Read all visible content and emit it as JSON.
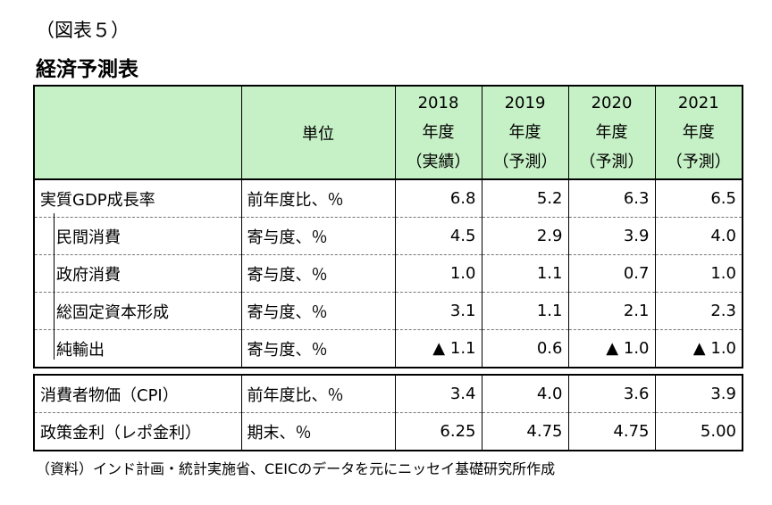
{
  "figure_label": "（図表５）",
  "title": "経済予測表",
  "header": {
    "unit": "単位",
    "years": [
      {
        "year": "2018",
        "kind": "年度",
        "status": "（実績）"
      },
      {
        "year": "2019",
        "kind": "年度",
        "status": "（予測）"
      },
      {
        "year": "2020",
        "kind": "年度",
        "status": "（予測）"
      },
      {
        "year": "2021",
        "kind": "年度",
        "status": "（予測）"
      }
    ]
  },
  "rows": [
    {
      "label": "実質GDP成長率",
      "unit": "前年度比、％",
      "values": [
        "6.8",
        "5.2",
        "6.3",
        "6.5"
      ]
    },
    {
      "label": "民間消費",
      "unit": "寄与度、％",
      "values": [
        "4.5",
        "2.9",
        "3.9",
        "4.0"
      ]
    },
    {
      "label": "政府消費",
      "unit": "寄与度、％",
      "values": [
        "1.0",
        "1.1",
        "0.7",
        "1.0"
      ]
    },
    {
      "label": "総固定資本形成",
      "unit": "寄与度、％",
      "values": [
        "3.1",
        "1.1",
        "2.1",
        "2.3"
      ]
    },
    {
      "label": "純輸出",
      "unit": "寄与度、％",
      "values": [
        "▲ 1.1",
        "0.6",
        "▲ 1.0",
        "▲ 1.0"
      ]
    }
  ],
  "rows2": [
    {
      "label": "消費者物価（CPI）",
      "unit": "前年度比、％",
      "values": [
        "3.4",
        "4.0",
        "3.6",
        "3.9"
      ]
    },
    {
      "label": "政策金利（レポ金利）",
      "unit": "期末、％",
      "values": [
        "6.25",
        "4.75",
        "4.75",
        "5.00"
      ]
    }
  ],
  "note": "（資料）インド計画・統計実施省、CEICのデータを元にニッセイ基礎研究所作成",
  "colors": {
    "header_bg": "#c6f0c6"
  }
}
